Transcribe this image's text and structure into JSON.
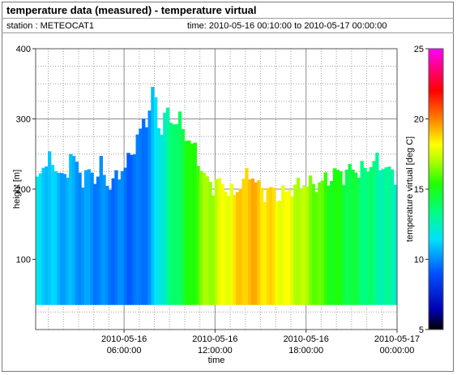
{
  "header": {
    "title": "temperature data (measured) - temperature virtual",
    "station": "station : METEOCAT1",
    "time_range": "time: 2010-05-16 00:10:00 to 2010-05-17 00:00:00"
  },
  "chart_data": {
    "type": "heatmap",
    "title": "temperature data (measured) - temperature virtual",
    "xlabel": "time",
    "ylabel": "height [m]",
    "colorbar_label": "temperature virtual [deg C]",
    "x_ticks": [
      {
        "hours": 6,
        "line1": "2010-05-16",
        "line2": "06:00:00"
      },
      {
        "hours": 12,
        "line1": "2010-05-16",
        "line2": "12:00:00"
      },
      {
        "hours": 18,
        "line1": "2010-05-16",
        "line2": "18:00:00"
      },
      {
        "hours": 24,
        "line1": "2010-05-17",
        "line2": "00:00:00"
      }
    ],
    "xlim_hours": [
      0.17,
      24
    ],
    "y_ticks": [
      100,
      200,
      300,
      400
    ],
    "ylim": [
      0,
      400
    ],
    "colorbar_ticks": [
      5,
      10,
      15,
      20,
      25
    ],
    "colorbar_range": [
      5,
      25
    ],
    "data_bottom_height": 35,
    "top_height_profile": [
      [
        0.17,
        205
      ],
      [
        0.6,
        235
      ],
      [
        1.2,
        240
      ],
      [
        1.7,
        225
      ],
      [
        2.1,
        210
      ],
      [
        2.5,
        255
      ],
      [
        2.9,
        230
      ],
      [
        3.3,
        215
      ],
      [
        3.7,
        225
      ],
      [
        4.1,
        215
      ],
      [
        4.5,
        235
      ],
      [
        4.9,
        205
      ],
      [
        5.3,
        210
      ],
      [
        5.7,
        225
      ],
      [
        6.0,
        230
      ],
      [
        6.4,
        245
      ],
      [
        6.8,
        270
      ],
      [
        7.2,
        290
      ],
      [
        7.5,
        300
      ],
      [
        7.8,
        330
      ],
      [
        8.0,
        345
      ],
      [
        8.3,
        280
      ],
      [
        8.8,
        310
      ],
      [
        9.2,
        295
      ],
      [
        9.6,
        300
      ],
      [
        10.0,
        280
      ],
      [
        10.4,
        265
      ],
      [
        10.8,
        250
      ],
      [
        11.2,
        220
      ],
      [
        11.8,
        205
      ],
      [
        12.3,
        210
      ],
      [
        12.8,
        200
      ],
      [
        13.2,
        190
      ],
      [
        13.6,
        205
      ],
      [
        14.0,
        215
      ],
      [
        14.3,
        225
      ],
      [
        14.8,
        205
      ],
      [
        15.3,
        195
      ],
      [
        15.7,
        200
      ],
      [
        16.1,
        190
      ],
      [
        16.6,
        195
      ],
      [
        17.0,
        200
      ],
      [
        17.5,
        205
      ],
      [
        18.0,
        210
      ],
      [
        18.5,
        205
      ],
      [
        19.0,
        210
      ],
      [
        19.5,
        215
      ],
      [
        20.0,
        225
      ],
      [
        20.5,
        220
      ],
      [
        21.0,
        230
      ],
      [
        21.5,
        225
      ],
      [
        22.0,
        230
      ],
      [
        22.5,
        240
      ],
      [
        23.0,
        235
      ],
      [
        23.5,
        225
      ],
      [
        24.0,
        220
      ]
    ],
    "temperature_profile": [
      [
        0.17,
        11.5
      ],
      [
        2.0,
        10.6
      ],
      [
        4.0,
        10.0
      ],
      [
        6.0,
        9.6
      ],
      [
        7.0,
        9.4
      ],
      [
        7.8,
        10.3
      ],
      [
        8.4,
        12.2
      ],
      [
        9.0,
        13.0
      ],
      [
        9.6,
        14.2
      ],
      [
        10.3,
        15.0
      ],
      [
        11.0,
        16.3
      ],
      [
        11.8,
        17.0
      ],
      [
        12.5,
        17.8
      ],
      [
        13.3,
        18.5
      ],
      [
        14.2,
        19.3
      ],
      [
        15.0,
        18.9
      ],
      [
        15.8,
        18.4
      ],
      [
        16.6,
        18.0
      ],
      [
        17.4,
        17.3
      ],
      [
        18.3,
        16.6
      ],
      [
        19.0,
        15.8
      ],
      [
        19.8,
        15.1
      ],
      [
        20.6,
        14.6
      ],
      [
        21.4,
        14.0
      ],
      [
        22.2,
        13.4
      ],
      [
        23.0,
        12.9
      ],
      [
        24.0,
        12.5
      ]
    ]
  }
}
